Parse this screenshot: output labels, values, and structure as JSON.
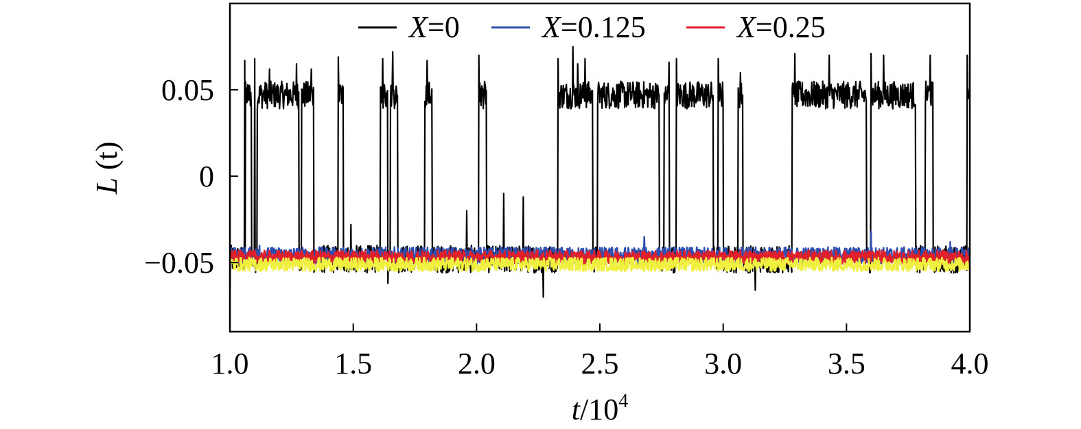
{
  "chart_data": {
    "type": "line",
    "xlabel": {
      "var": "t",
      "slash": "/",
      "base": "10",
      "exp": "4"
    },
    "ylabel": {
      "var": "L",
      "arg": " (t)"
    },
    "xlim": [
      1.0,
      4.0
    ],
    "ylim": [
      -0.09,
      0.1
    ],
    "xticks": [
      1.0,
      1.5,
      2.0,
      2.5,
      3.0,
      3.5,
      4.0
    ],
    "xtick_labels": [
      "1.0",
      "1.5",
      "2.0",
      "2.5",
      "3.0",
      "3.5",
      "4.0"
    ],
    "yticks": [
      -0.05,
      0,
      0.05
    ],
    "ytick_labels": [
      "−0.05",
      "0",
      "0.05"
    ],
    "grid": false,
    "legend_position": "top-center",
    "high_state_value": 0.047,
    "low_state_value": -0.048,
    "series": [
      {
        "name": {
          "var": "X",
          "val": "=0"
        },
        "color": "#000000",
        "noise_amplitude": 0.008,
        "high_intervals": [
          [
            1.062,
            1.088
          ],
          [
            1.11,
            1.28
          ],
          [
            1.29,
            1.34
          ],
          [
            1.44,
            1.46
          ],
          [
            1.61,
            1.64
          ],
          [
            1.65,
            1.68
          ],
          [
            1.79,
            1.82
          ],
          [
            2.01,
            2.04
          ],
          [
            2.33,
            2.47
          ],
          [
            2.49,
            2.74
          ],
          [
            2.76,
            2.78
          ],
          [
            2.81,
            2.96
          ],
          [
            2.98,
            3.0
          ],
          [
            3.06,
            3.08
          ],
          [
            3.28,
            3.58
          ],
          [
            3.6,
            3.78
          ],
          [
            3.82,
            3.85
          ],
          [
            3.99,
            4.0
          ]
        ],
        "spike_points": [
          [
            1.06,
            0.067
          ],
          [
            1.1,
            0.068
          ],
          [
            1.16,
            0.062
          ],
          [
            1.27,
            0.065
          ],
          [
            1.33,
            0.062
          ],
          [
            1.44,
            0.069
          ],
          [
            1.62,
            0.068
          ],
          [
            1.66,
            0.072
          ],
          [
            1.8,
            0.067
          ],
          [
            2.01,
            0.07
          ],
          [
            2.33,
            0.068
          ],
          [
            2.39,
            0.075
          ],
          [
            2.41,
            0.065
          ],
          [
            2.44,
            0.068
          ],
          [
            2.78,
            0.066
          ],
          [
            2.81,
            0.068
          ],
          [
            2.98,
            0.068
          ],
          [
            3.07,
            0.06
          ],
          [
            3.29,
            0.071
          ],
          [
            3.43,
            0.07
          ],
          [
            3.6,
            0.071
          ],
          [
            3.65,
            0.07
          ],
          [
            3.84,
            0.07
          ],
          [
            3.99,
            0.07
          ],
          [
            2.11,
            -0.01
          ],
          [
            1.96,
            -0.02
          ],
          [
            2.19,
            -0.012
          ],
          [
            1.49,
            -0.028
          ],
          [
            3.13,
            -0.066
          ],
          [
            2.27,
            -0.07
          ],
          [
            1.64,
            -0.062
          ],
          [
            1.0,
            -0.068
          ]
        ]
      },
      {
        "name": {
          "var": "X",
          "val": "=0.125"
        },
        "color": "#2f4fb0",
        "noise_amplitude": 0.005,
        "high_intervals": [],
        "spike_points": [
          [
            2.68,
            -0.035
          ],
          [
            3.6,
            -0.032
          ],
          [
            1.12,
            -0.04
          ],
          [
            3.92,
            -0.038
          ]
        ]
      },
      {
        "name": {
          "var": "X",
          "val": "=0.25"
        },
        "color": "#e0202a",
        "noise_amplitude": 0.004,
        "high_intervals": [],
        "spike_points": []
      },
      {
        "color": "#f0f040",
        "noise_amplitude": 0.004,
        "high_intervals": [],
        "spike_points": []
      }
    ],
    "series_offsets": [
      0.0,
      0.002,
      0.001,
      -0.003
    ]
  }
}
